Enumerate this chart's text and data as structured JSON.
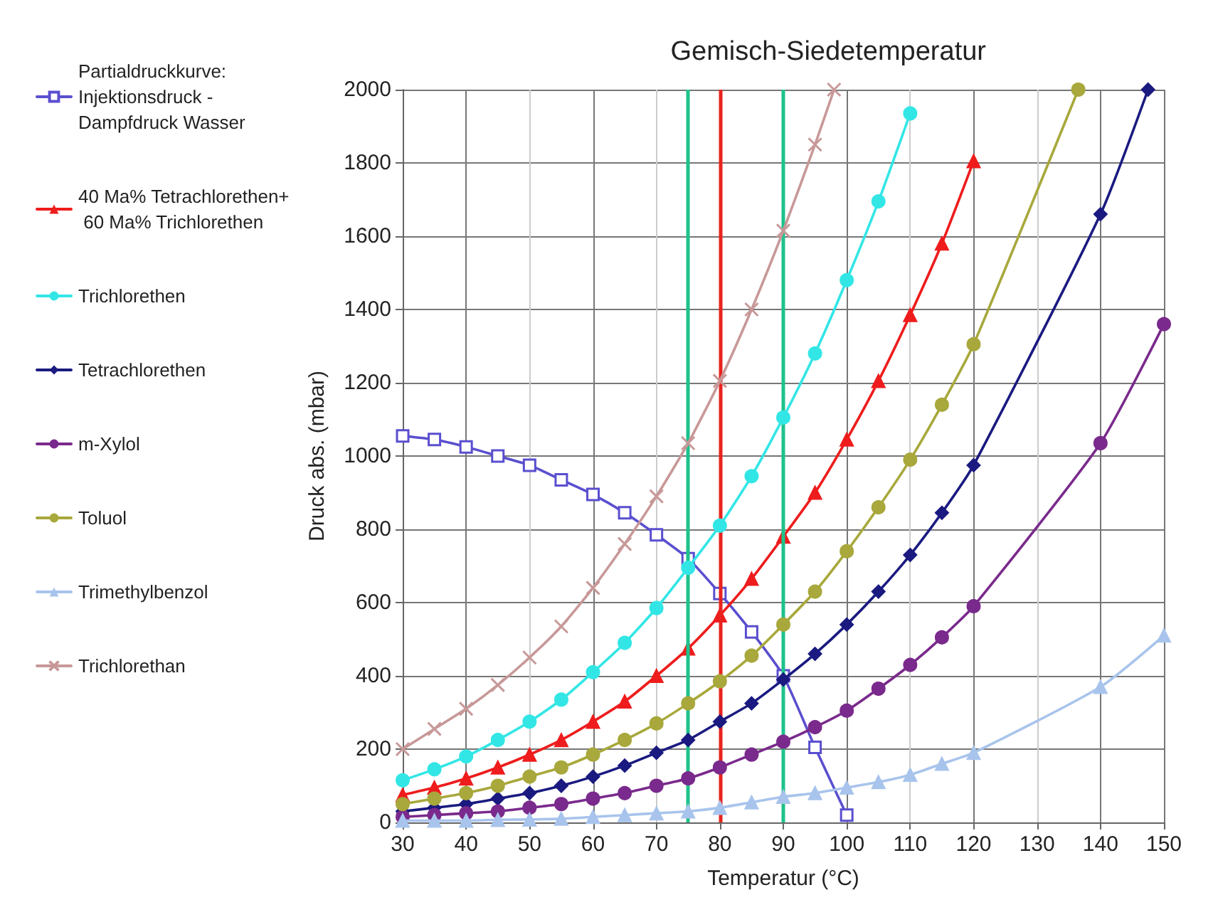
{
  "chart_data": {
    "type": "line",
    "title": "Gemisch-Siedetemperatur",
    "xlabel": "Temperatur (°C)",
    "ylabel": "Druck abs. (mbar)",
    "xlim": [
      30,
      150
    ],
    "xticks": [
      30,
      40,
      50,
      60,
      70,
      80,
      90,
      100,
      110,
      120,
      130,
      140,
      150
    ],
    "ylim": [
      0,
      2000
    ],
    "yticks": [
      0,
      200,
      400,
      600,
      800,
      1000,
      1200,
      1400,
      1600,
      1800,
      2000
    ],
    "grid": true,
    "legend": "left",
    "line_style": "solid",
    "series": [
      {
        "name": "Partialdruckkurve: Injektionsdruck - Dampfdruck Wasser",
        "color": "#5a4fcf",
        "marker": "square",
        "x": [
          30,
          35,
          40,
          45,
          50,
          55,
          60,
          65,
          70,
          75,
          80,
          85,
          90,
          95,
          100
        ],
        "values": [
          1055,
          1045,
          1025,
          1000,
          975,
          935,
          895,
          845,
          785,
          720,
          625,
          520,
          400,
          205,
          20
        ]
      },
      {
        "name": "40 Ma% Tetrachlorethen+ 60 Ma% Trichlorethen",
        "color": "#ee1c1c",
        "marker": "triangle",
        "x": [
          30,
          35,
          40,
          45,
          50,
          55,
          60,
          65,
          70,
          75,
          80,
          85,
          90,
          95,
          100,
          105,
          110,
          115,
          120
        ],
        "values": [
          75,
          95,
          120,
          150,
          185,
          225,
          275,
          330,
          400,
          475,
          565,
          665,
          780,
          900,
          1045,
          1205,
          1385,
          1580,
          1805
        ]
      },
      {
        "name": "Trichlorethen",
        "color": "#33e6e6",
        "marker": "circle",
        "x": [
          30,
          35,
          40,
          45,
          50,
          55,
          60,
          65,
          70,
          75,
          80,
          85,
          90,
          95,
          100,
          105,
          110
        ],
        "values": [
          115,
          145,
          180,
          225,
          275,
          335,
          410,
          490,
          585,
          695,
          810,
          945,
          1105,
          1280,
          1480,
          1695,
          1935
        ]
      },
      {
        "name": "Tetrachlorethen",
        "color": "#1a1a80",
        "marker": "diamond",
        "x": [
          30,
          35,
          40,
          45,
          50,
          55,
          60,
          65,
          70,
          75,
          80,
          85,
          90,
          95,
          100,
          105,
          110,
          115,
          120,
          140,
          147.5
        ],
        "values": [
          30,
          40,
          50,
          65,
          80,
          100,
          125,
          155,
          190,
          225,
          275,
          325,
          390,
          460,
          540,
          630,
          730,
          845,
          975,
          1660,
          2000
        ]
      },
      {
        "name": "m-Xylol",
        "color": "#7a2a8c",
        "marker": "circle",
        "x": [
          30,
          35,
          40,
          45,
          50,
          55,
          60,
          65,
          70,
          75,
          80,
          85,
          90,
          95,
          100,
          105,
          110,
          115,
          120,
          140,
          150
        ],
        "values": [
          15,
          20,
          25,
          30,
          40,
          50,
          65,
          80,
          100,
          120,
          150,
          185,
          220,
          260,
          305,
          365,
          430,
          505,
          590,
          1035,
          1360
        ]
      },
      {
        "name": "Toluol",
        "color": "#a8a83c",
        "marker": "circle",
        "x": [
          30,
          35,
          40,
          45,
          50,
          55,
          60,
          65,
          70,
          75,
          80,
          85,
          90,
          95,
          100,
          105,
          110,
          115,
          120,
          136.5
        ],
        "values": [
          50,
          65,
          80,
          100,
          125,
          150,
          185,
          225,
          270,
          325,
          385,
          455,
          540,
          630,
          740,
          860,
          990,
          1140,
          1305,
          2000
        ]
      },
      {
        "name": "Trimethylbenzol",
        "color": "#a8c4ec",
        "marker": "triangle",
        "x": [
          30,
          35,
          40,
          45,
          50,
          55,
          60,
          65,
          70,
          75,
          80,
          85,
          90,
          95,
          100,
          105,
          110,
          115,
          120,
          140,
          150
        ],
        "values": [
          5,
          5,
          5,
          7,
          8,
          10,
          15,
          20,
          25,
          30,
          40,
          55,
          70,
          80,
          95,
          110,
          130,
          160,
          190,
          370,
          510
        ]
      },
      {
        "name": "Trichlorethan",
        "color": "#c89898",
        "marker": "cross",
        "x": [
          30,
          35,
          40,
          45,
          50,
          55,
          60,
          65,
          70,
          75,
          80,
          85,
          90,
          95,
          98
        ],
        "values": [
          200,
          255,
          310,
          375,
          450,
          535,
          640,
          760,
          890,
          1035,
          1205,
          1400,
          1615,
          1850,
          2000
        ]
      }
    ],
    "ref_lines": [
      {
        "axis": "x",
        "value": 75,
        "color": "#1ec28c"
      },
      {
        "axis": "x",
        "value": 80,
        "color": "#e8231e"
      },
      {
        "axis": "x",
        "value": 90,
        "color": "#1ec28c"
      }
    ]
  }
}
